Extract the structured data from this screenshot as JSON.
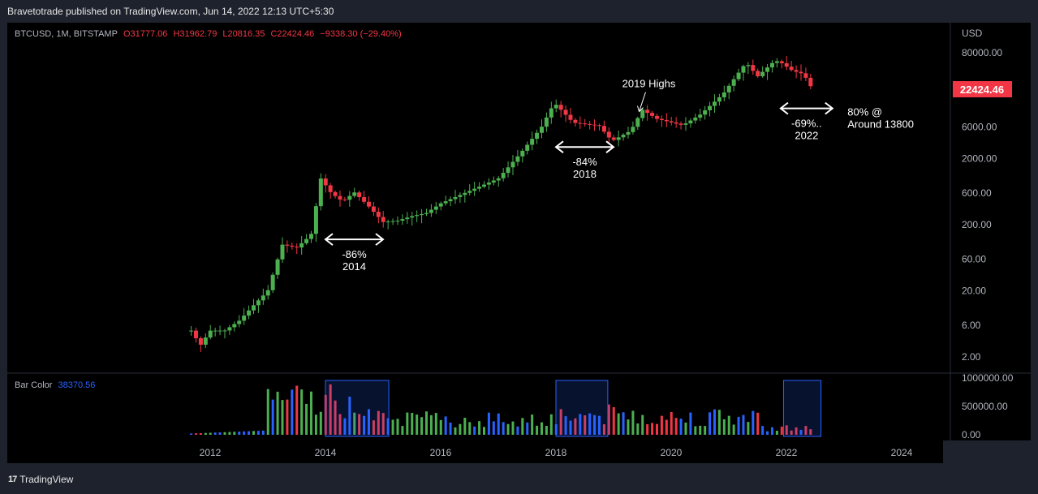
{
  "header": {
    "published_line": "Bravetotrade published on TradingView.com, Jun 14, 2022 12:13 UTC+5:30"
  },
  "legend": {
    "symbol": "BTCUSD, 1M, BITSTAMP",
    "open": "O31777.06",
    "high": "H31962.79",
    "low": "L20816.35",
    "close": "C22424.46",
    "change": "−9338.30 (−29.40%)"
  },
  "volume_legend": {
    "name": "Bar Color",
    "value": "38370.56"
  },
  "footer": {
    "brand": "TradingView"
  },
  "colors": {
    "up": "#4caf50",
    "down": "#f23645",
    "neutral": "#2962ff",
    "annotation": "#ffffff",
    "price_tag": "#f23645"
  },
  "chart_data": {
    "type": "candlestick",
    "symbol": "BTCUSD",
    "timeframe": "1M",
    "exchange": "BITSTAMP",
    "price_axis": {
      "label": "USD",
      "scale": "log",
      "ticks": [
        "80000.00",
        "6000.00",
        "2000.00",
        "600.00",
        "200.00",
        "60.00",
        "20.00",
        "6.00",
        "2.00"
      ],
      "tick_values": [
        80000,
        6000,
        2000,
        600,
        200,
        60,
        20,
        6,
        2
      ]
    },
    "last_price": "22424.46",
    "volume_axis": {
      "ticks": [
        "1000000.00",
        "500000.00",
        "0.00"
      ],
      "tick_values": [
        1000000,
        500000,
        0
      ]
    },
    "time_axis": {
      "ticks": [
        "2012",
        "2014",
        "2016",
        "2018",
        "2020",
        "2022",
        "2024"
      ]
    },
    "price_series": [
      {
        "t": 2011.67,
        "p": 5
      },
      {
        "t": 2011.83,
        "p": 3
      },
      {
        "t": 2012.0,
        "p": 5
      },
      {
        "t": 2012.25,
        "p": 5
      },
      {
        "t": 2012.5,
        "p": 7
      },
      {
        "t": 2012.75,
        "p": 12
      },
      {
        "t": 2013.0,
        "p": 20
      },
      {
        "t": 2013.25,
        "p": 100
      },
      {
        "t": 2013.5,
        "p": 90
      },
      {
        "t": 2013.75,
        "p": 140
      },
      {
        "t": 2013.92,
        "p": 1000
      },
      {
        "t": 2014.1,
        "p": 600
      },
      {
        "t": 2014.3,
        "p": 450
      },
      {
        "t": 2014.5,
        "p": 620
      },
      {
        "t": 2014.75,
        "p": 380
      },
      {
        "t": 2015.0,
        "p": 220
      },
      {
        "t": 2015.25,
        "p": 230
      },
      {
        "t": 2015.5,
        "p": 270
      },
      {
        "t": 2015.75,
        "p": 300
      },
      {
        "t": 2016.0,
        "p": 420
      },
      {
        "t": 2016.5,
        "p": 650
      },
      {
        "t": 2017.0,
        "p": 1000
      },
      {
        "t": 2017.4,
        "p": 2500
      },
      {
        "t": 2017.75,
        "p": 6000
      },
      {
        "t": 2017.97,
        "p": 14000
      },
      {
        "t": 2018.3,
        "p": 7000
      },
      {
        "t": 2018.75,
        "p": 6300
      },
      {
        "t": 2018.97,
        "p": 3700
      },
      {
        "t": 2019.3,
        "p": 5300
      },
      {
        "t": 2019.5,
        "p": 11000
      },
      {
        "t": 2019.75,
        "p": 8000
      },
      {
        "t": 2020.2,
        "p": 6400
      },
      {
        "t": 2020.5,
        "p": 9200
      },
      {
        "t": 2020.9,
        "p": 19000
      },
      {
        "t": 2021.1,
        "p": 33000
      },
      {
        "t": 2021.3,
        "p": 57000
      },
      {
        "t": 2021.5,
        "p": 35000
      },
      {
        "t": 2021.8,
        "p": 61000
      },
      {
        "t": 2021.9,
        "p": 57000
      },
      {
        "t": 2022.1,
        "p": 43000
      },
      {
        "t": 2022.3,
        "p": 38000
      },
      {
        "t": 2022.45,
        "p": 22424
      }
    ],
    "volume_boxes": [
      {
        "from": 2014.0,
        "to": 2015.1,
        "label": ""
      },
      {
        "from": 2018.0,
        "to": 2018.9,
        "label": ""
      },
      {
        "from": 2021.95,
        "to": 2022.6,
        "label": ""
      }
    ],
    "annotations": [
      {
        "lines": [
          "-86%",
          "2014"
        ],
        "t_from": 2014.0,
        "t_to": 2015.0,
        "price": 120
      },
      {
        "lines": [
          "-84%",
          "2018"
        ],
        "t_from": 2018.0,
        "t_to": 2019.0,
        "price": 3000
      },
      {
        "lines": [
          "2019 Highs"
        ],
        "t": 2019.5,
        "price": 24000,
        "arrow": true
      },
      {
        "lines": [
          "-69%..",
          "2022"
        ],
        "t_from": 2021.9,
        "t_to": 2022.8,
        "price": 11500
      },
      {
        "lines": [
          "80% @",
          "Around 13800"
        ],
        "t": 2022.75,
        "price": 9000
      }
    ]
  }
}
